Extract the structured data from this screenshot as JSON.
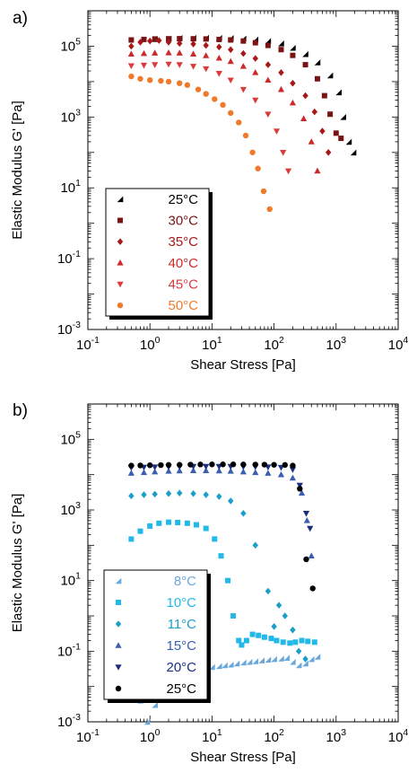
{
  "chart_data": [
    {
      "type": "scatter",
      "panel_label": "a)",
      "xlabel": "Shear Stress [Pa]",
      "ylabel": "Elastic Modulus G' [Pa]",
      "xscale": "log",
      "yscale": "log",
      "xlim": [
        0.1,
        10000
      ],
      "ylim": [
        0.001,
        1000000
      ],
      "x_ticks": [
        {
          "v": 0.1,
          "m": "10",
          "e": "-1"
        },
        {
          "v": 1,
          "m": "10",
          "e": "0"
        },
        {
          "v": 10,
          "m": "10",
          "e": "1"
        },
        {
          "v": 100,
          "m": "10",
          "e": "2"
        },
        {
          "v": 1000,
          "m": "10",
          "e": "3"
        },
        {
          "v": 10000,
          "m": "10",
          "e": "4"
        }
      ],
      "y_ticks": [
        {
          "v": 0.001,
          "m": "10",
          "e": "-3"
        },
        {
          "v": 0.1,
          "m": "10",
          "e": "-1"
        },
        {
          "v": 10,
          "m": "10",
          "e": "1"
        },
        {
          "v": 1000,
          "m": "10",
          "e": "3"
        },
        {
          "v": 100000,
          "m": "10",
          "e": "5"
        }
      ],
      "legend_position": "bottom-left",
      "series": [
        {
          "name": "25°C",
          "color": "#000000",
          "marker": "triangle-ul",
          "x": [
            1.2,
            2,
            3,
            5,
            8,
            13,
            20,
            32,
            50,
            80,
            130,
            200,
            320,
            500,
            800,
            1100,
            1300,
            1600,
            1900
          ],
          "y": [
            160000,
            165000,
            170000,
            172000,
            173000,
            172000,
            170000,
            165000,
            155000,
            140000,
            120000,
            90000,
            60000,
            35000,
            15000,
            5000,
            1000,
            200,
            100
          ]
        },
        {
          "name": "30°C",
          "color": "#7a1414",
          "marker": "square",
          "x": [
            0.5,
            0.8,
            1.2,
            2,
            3,
            5,
            8,
            13,
            20,
            32,
            50,
            80,
            130,
            200,
            320,
            500,
            650,
            800,
            1000,
            1200
          ],
          "y": [
            150000,
            155000,
            160000,
            162000,
            163000,
            162000,
            160000,
            155000,
            150000,
            140000,
            125000,
            105000,
            80000,
            55000,
            30000,
            12000,
            4000,
            1200,
            350,
            250
          ]
        },
        {
          "name": "35°C",
          "color": "#a81818",
          "marker": "diamond",
          "x": [
            0.5,
            0.7,
            1,
            1.4,
            2,
            3,
            5,
            8,
            13,
            20,
            32,
            50,
            80,
            130,
            200,
            320,
            450,
            600,
            750
          ],
          "y": [
            100000,
            130000,
            140000,
            145000,
            130000,
            120000,
            115000,
            105000,
            95000,
            80000,
            62000,
            45000,
            30000,
            18000,
            9000,
            4000,
            1400,
            400,
            100
          ]
        },
        {
          "name": "40°C",
          "color": "#cc2a2a",
          "marker": "triangle",
          "x": [
            0.5,
            0.8,
            1.2,
            2,
            3,
            5,
            8,
            13,
            20,
            32,
            50,
            80,
            130,
            200,
            300,
            400,
            500
          ],
          "y": [
            60000,
            62000,
            64000,
            65000,
            64000,
            60000,
            54000,
            46000,
            37000,
            27000,
            18000,
            11000,
            6000,
            2500,
            900,
            200,
            30
          ]
        },
        {
          "name": "45°C",
          "color": "#dd3a3a",
          "marker": "triangle-down",
          "x": [
            0.5,
            0.8,
            1.2,
            2,
            3,
            5,
            8,
            13,
            20,
            32,
            50,
            80,
            110,
            140,
            170
          ],
          "y": [
            28000,
            29000,
            30000,
            31000,
            30000,
            27000,
            23000,
            17000,
            11000,
            6000,
            3000,
            1200,
            400,
            100,
            30
          ]
        },
        {
          "name": "50°C",
          "color": "#ee7a2a",
          "marker": "circle",
          "x": [
            0.5,
            0.7,
            1,
            1.5,
            2,
            3,
            4,
            6,
            8,
            11,
            15,
            20,
            27,
            35,
            45,
            55,
            68,
            85
          ],
          "y": [
            14000,
            12000,
            11000,
            10500,
            10000,
            9000,
            8000,
            6000,
            4500,
            3200,
            2200,
            1300,
            700,
            300,
            100,
            35,
            8,
            2.5
          ]
        }
      ]
    },
    {
      "type": "scatter",
      "panel_label": "b)",
      "xlabel": "Shear Stress [Pa]",
      "ylabel": "Elastic Modulus G' [Pa]",
      "xscale": "log",
      "yscale": "log",
      "xlim": [
        0.1,
        10000
      ],
      "ylim": [
        0.001,
        1000000
      ],
      "x_ticks": [
        {
          "v": 0.1,
          "m": "10",
          "e": "-1"
        },
        {
          "v": 1,
          "m": "10",
          "e": "0"
        },
        {
          "v": 10,
          "m": "10",
          "e": "1"
        },
        {
          "v": 100,
          "m": "10",
          "e": "2"
        },
        {
          "v": 1000,
          "m": "10",
          "e": "3"
        },
        {
          "v": 10000,
          "m": "10",
          "e": "4"
        }
      ],
      "y_ticks": [
        {
          "v": 0.001,
          "m": "10",
          "e": "-3"
        },
        {
          "v": 0.1,
          "m": "10",
          "e": "-1"
        },
        {
          "v": 10,
          "m": "10",
          "e": "1"
        },
        {
          "v": 1000,
          "m": "10",
          "e": "3"
        },
        {
          "v": 100000,
          "m": "10",
          "e": "5"
        }
      ],
      "legend_position": "bottom-left",
      "series": [
        {
          "name": "8°C",
          "color": "#6aa8dc",
          "marker": "triangle-ul",
          "x": [
            0.5,
            0.7,
            0.9,
            1.2,
            1.6,
            2,
            2.5,
            3.2,
            4,
            5,
            6.3,
            8,
            10,
            13,
            16,
            20,
            25,
            32,
            40,
            50,
            63,
            80,
            100,
            130,
            160,
            200,
            250,
            320,
            400,
            500
          ],
          "y": [
            0.006,
            0.004,
            0.001,
            0.003,
            0.005,
            0.01,
            0.02,
            0.025,
            0.028,
            0.03,
            0.032,
            0.034,
            0.036,
            0.038,
            0.04,
            0.042,
            0.045,
            0.048,
            0.05,
            0.052,
            0.055,
            0.058,
            0.06,
            0.062,
            0.065,
            0.05,
            0.04,
            0.045,
            0.06,
            0.07
          ]
        },
        {
          "name": "10°C",
          "color": "#22b8e8",
          "marker": "square",
          "x": [
            0.5,
            0.7,
            1,
            1.4,
            2,
            2.8,
            4,
            5.6,
            8,
            11,
            14,
            18,
            22,
            27,
            30,
            36,
            45,
            56,
            70,
            90,
            110,
            140,
            180,
            220,
            280,
            350,
            450
          ],
          "y": [
            150,
            250,
            350,
            420,
            450,
            440,
            420,
            380,
            300,
            150,
            50,
            10,
            1,
            0.2,
            0.15,
            0.2,
            0.3,
            0.28,
            0.25,
            0.23,
            0.2,
            0.18,
            0.17,
            0.18,
            0.2,
            0.19,
            0.18
          ]
        },
        {
          "name": "11°C",
          "color": "#1aa0c8",
          "marker": "diamond",
          "x": [
            0.5,
            0.8,
            1.2,
            2,
            3,
            5,
            8,
            13,
            20,
            32,
            50,
            80,
            100,
            120,
            150,
            200,
            250,
            320
          ],
          "y": [
            2500,
            2700,
            2800,
            2900,
            3000,
            2900,
            2700,
            2400,
            1800,
            800,
            100,
            5,
            0.5,
            2,
            1,
            0.4,
            0.1,
            0.06
          ]
        },
        {
          "name": "15°C",
          "color": "#3a5fb0",
          "marker": "triangle",
          "x": [
            0.5,
            0.8,
            1.2,
            2,
            3,
            5,
            8,
            13,
            20,
            32,
            50,
            80,
            130,
            200,
            280,
            340,
            400
          ],
          "y": [
            11000,
            11500,
            12000,
            12500,
            12800,
            13000,
            13000,
            12800,
            12500,
            12000,
            11500,
            11000,
            10000,
            8000,
            3000,
            500,
            50
          ]
        },
        {
          "name": "20°C",
          "color": "#1a2f80",
          "marker": "triangle-down",
          "x": [
            0.5,
            0.8,
            1.2,
            2,
            3,
            5,
            8,
            13,
            20,
            32,
            50,
            80,
            130,
            200,
            260,
            330,
            380
          ],
          "y": [
            16000,
            16200,
            16400,
            16600,
            16800,
            17000,
            17000,
            17000,
            17000,
            16800,
            16600,
            16400,
            16000,
            14000,
            5000,
            800,
            300
          ]
        },
        {
          "name": "25°C",
          "color": "#000000",
          "marker": "circle",
          "x": [
            0.5,
            0.7,
            1,
            1.5,
            2,
            3,
            4.5,
            6.5,
            10,
            15,
            22,
            32,
            50,
            70,
            100,
            150,
            200,
            260,
            330,
            420
          ],
          "y": [
            18000,
            18200,
            18400,
            18600,
            18800,
            19000,
            19200,
            19400,
            19500,
            19500,
            19500,
            19400,
            19300,
            19200,
            19000,
            18800,
            18000,
            4000,
            40,
            6
          ]
        }
      ]
    }
  ]
}
